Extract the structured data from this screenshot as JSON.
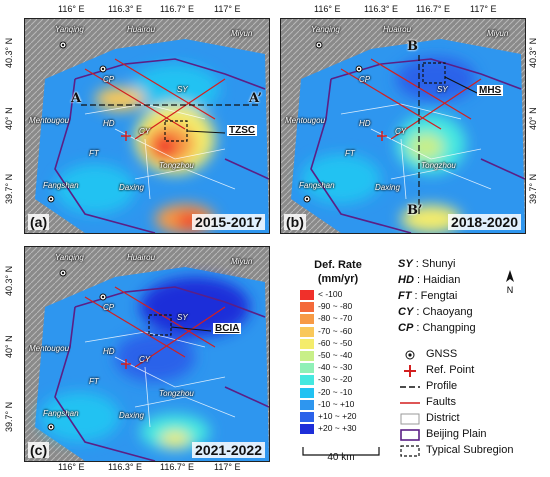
{
  "panels": [
    {
      "id": "a",
      "letter": "(a)",
      "period": "2015-2017",
      "callout": "TZSC"
    },
    {
      "id": "b",
      "letter": "(b)",
      "period": "2018-2020",
      "callout": "MHS"
    },
    {
      "id": "c",
      "letter": "(c)",
      "period": "2021-2022",
      "callout": "BCIA"
    }
  ],
  "lon_ticks": [
    "116° E",
    "116.3° E",
    "116.7° E",
    "117° E"
  ],
  "lat_ticks": [
    "40.3° N",
    "40° N",
    "39.7° N"
  ],
  "place_labels": [
    "Yanqing",
    "Huairou",
    "Miyun",
    "CP",
    "SY",
    "HD",
    "CY",
    "Mentougou",
    "FT",
    "Tongzhou",
    "Fangshan",
    "Daxing"
  ],
  "profile_points": {
    "a_start": "A",
    "a_end": "A’",
    "b_start": "B",
    "b_end": "B’"
  },
  "colorbar": {
    "title_line1": "Def. Rate",
    "title_line2": "(mm/yr)",
    "classes": [
      {
        "label": "< -100",
        "color": "#f0302a"
      },
      {
        "label": "-90 ~ -80",
        "color": "#f46a3a"
      },
      {
        "label": "-80 ~ -70",
        "color": "#f79a45"
      },
      {
        "label": "-70 ~ -60",
        "color": "#f9c85a"
      },
      {
        "label": "-60 ~ -50",
        "color": "#f4ec6c"
      },
      {
        "label": "-50 ~ -40",
        "color": "#c8ef88"
      },
      {
        "label": "-40 ~ -30",
        "color": "#8ff0b6"
      },
      {
        "label": "-30 ~ -20",
        "color": "#45e8e0"
      },
      {
        "label": "-20 ~ -10",
        "color": "#21c2f2"
      },
      {
        "label": "-10 ~ +10",
        "color": "#2e96ef"
      },
      {
        "label": "+10 ~ +20",
        "color": "#2b62ea"
      },
      {
        "label": "+20 ~ +30",
        "color": "#1d2ed9"
      }
    ]
  },
  "districts": [
    {
      "abbr": "SY",
      "name": "Shunyi"
    },
    {
      "abbr": "HD",
      "name": "Haidian"
    },
    {
      "abbr": "FT",
      "name": "Fengtai"
    },
    {
      "abbr": "CY",
      "name": "Chaoyang"
    },
    {
      "abbr": "CP",
      "name": "Changping"
    }
  ],
  "symbols": [
    {
      "icon": "gnss",
      "label": "GNSS"
    },
    {
      "icon": "ref-point",
      "label": "Ref. Point"
    },
    {
      "icon": "profile",
      "label": "Profile"
    },
    {
      "icon": "faults",
      "label": "Faults"
    },
    {
      "icon": "district",
      "label": "District"
    },
    {
      "icon": "beijing-plain",
      "label": "Beijing Plain"
    },
    {
      "icon": "typical-subregion",
      "label": "Typical Subregion"
    }
  ],
  "scale_label": "40 km",
  "colors": {
    "plain": "#5b1f86",
    "fault": "#d31f1f",
    "subsidence": "#f0302a",
    "stable": "#2e96ef",
    "terrain": "#8f8f8f"
  }
}
